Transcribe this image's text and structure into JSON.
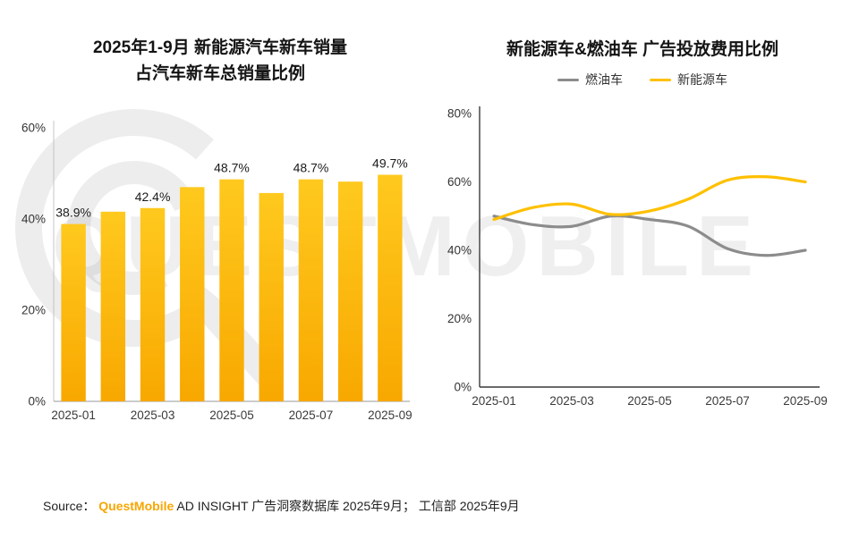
{
  "watermark_text": "QUESTMOBILE",
  "colors": {
    "brand_yellow": "#FBB800",
    "fuel_gray": "#8C8C8C",
    "source_brand_orange": "#F7A600"
  },
  "source": {
    "prefix": "Source： ",
    "brand": "QuestMobile",
    "rest": " AD INSIGHT 广告洞察数据库 2025年9月； 工信部 2025年9月"
  },
  "chart_data": [
    {
      "type": "bar",
      "title_line1": "2025年1-9月 新能源汽车新车销量",
      "title_line2": "占汽车新车总销量比例",
      "categories": [
        "2025-01",
        "2025-02",
        "2025-03",
        "2025-04",
        "2025-05",
        "2025-06",
        "2025-07",
        "2025-08",
        "2025-09"
      ],
      "values": [
        38.9,
        41.6,
        42.4,
        47.0,
        48.7,
        45.7,
        48.7,
        48.2,
        49.7
      ],
      "data_labels": {
        "0": "38.9%",
        "2": "42.4%",
        "4": "48.7%",
        "6": "48.7%",
        "8": "49.7%"
      },
      "ylim": [
        0,
        60
      ],
      "yticks": [
        "0%",
        "20%",
        "40%",
        "60%"
      ],
      "xtick_shown": [
        "2025-01",
        "2025-03",
        "2025-05",
        "2025-07",
        "2025-09"
      ],
      "grid": false,
      "bar_color_top": "#FFC91E",
      "bar_color_bottom": "#F8A800"
    },
    {
      "type": "line",
      "title": "新能源车&燃油车 广告投放费用比例",
      "x": [
        "2025-01",
        "2025-02",
        "2025-03",
        "2025-04",
        "2025-05",
        "2025-06",
        "2025-07",
        "2025-08",
        "2025-09"
      ],
      "series": [
        {
          "name": "燃油车",
          "color": "#8C8C8C",
          "values": [
            50,
            47.5,
            47,
            50,
            49,
            47,
            40.5,
            38.5,
            40
          ]
        },
        {
          "name": "新能源车",
          "color": "#FFC000",
          "values": [
            49,
            52.5,
            53.5,
            50.5,
            51.5,
            55,
            60.5,
            61.5,
            60
          ]
        }
      ],
      "ylim": [
        0,
        80
      ],
      "yticks": [
        "0%",
        "20%",
        "40%",
        "60%",
        "80%"
      ],
      "xtick_shown": [
        "2025-01",
        "2025-03",
        "2025-05",
        "2025-07",
        "2025-09"
      ],
      "legend_position": "top",
      "grid": false
    }
  ]
}
